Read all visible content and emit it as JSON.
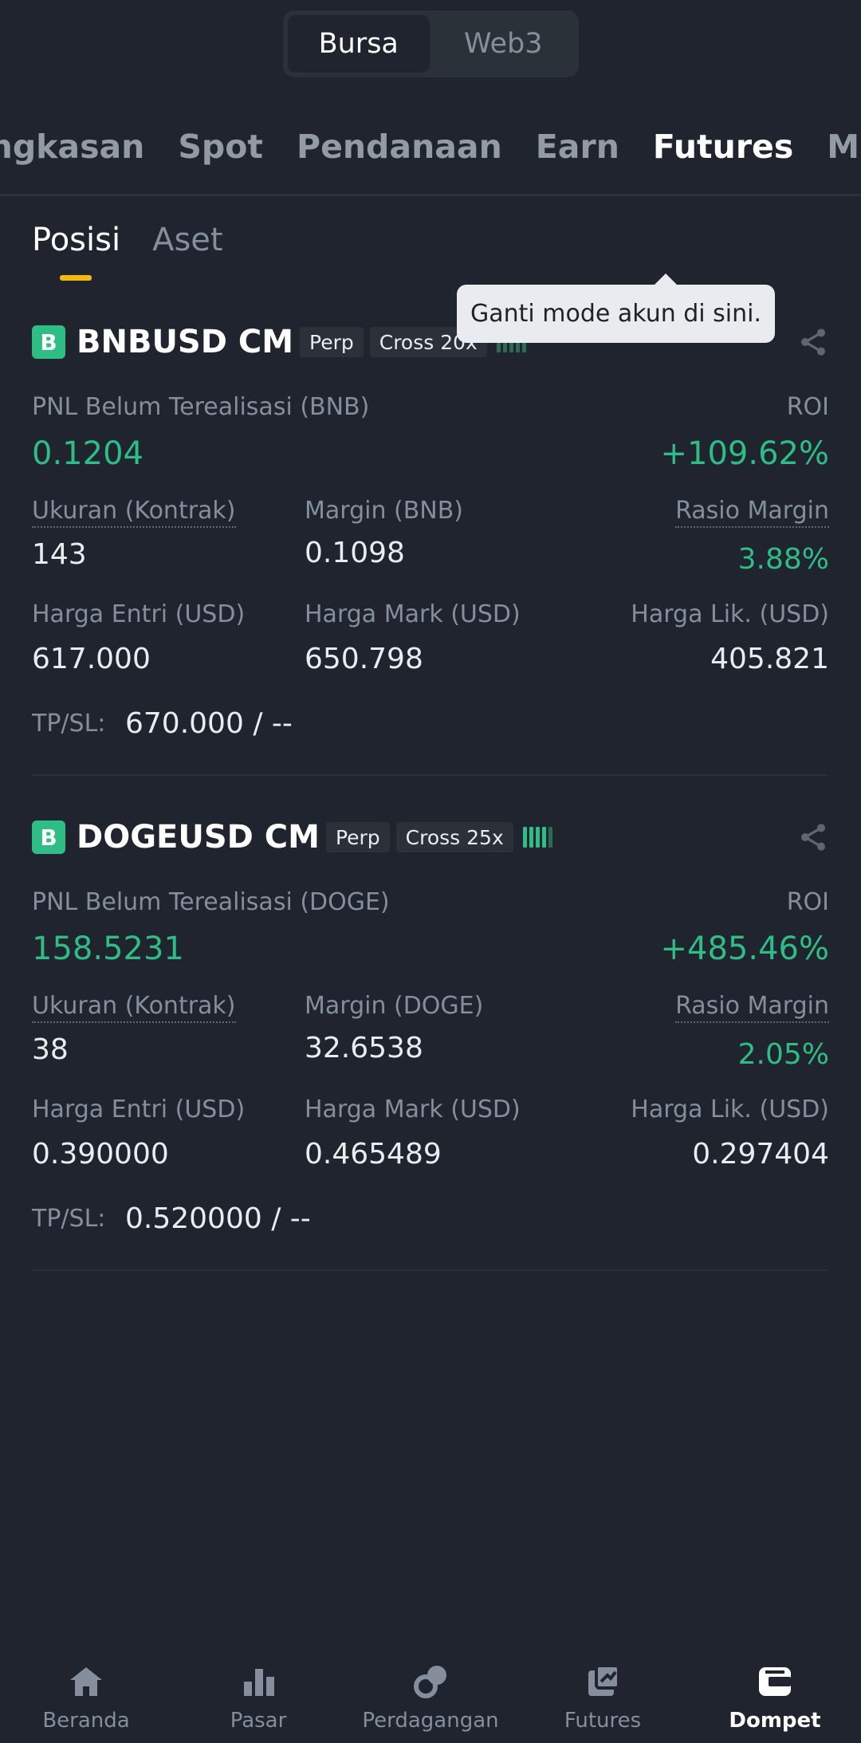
{
  "top_switch": {
    "items": [
      "Bursa",
      "Web3"
    ],
    "active": "Bursa"
  },
  "categories": [
    "Ringkasan",
    "Spot",
    "Pendanaan",
    "Earn",
    "Futures",
    "Margin"
  ],
  "subtabs": [
    "Posisi",
    "Aset"
  ],
  "tooltip": "Ganti mode akun di sini.",
  "positions": [
    {
      "badge": "B",
      "symbol": "BNBUSD CM",
      "type": "Perp",
      "leverage": "Cross 20x",
      "pnl_label": "PNL Belum Terealisasi (BNB)",
      "pnl": "0.1204",
      "roi_label": "ROI",
      "roi": "+109.62%",
      "size_label": "Ukuran (Kontrak)",
      "size": "143",
      "margin_label": "Margin (BNB)",
      "margin": "0.1098",
      "ratio_label": "Rasio Margin",
      "ratio": "3.88%",
      "entry_label": "Harga Entri (USD)",
      "entry": "617.000",
      "mark_label": "Harga Mark (USD)",
      "mark": "650.798",
      "liq_label": "Harga Lik. (USD)",
      "liq": "405.821",
      "tpsl_label": "TP/SL:",
      "tpsl": "670.000 / --"
    },
    {
      "badge": "B",
      "symbol": "DOGEUSD CM",
      "type": "Perp",
      "leverage": "Cross 25x",
      "pnl_label": "PNL Belum Terealisasi (DOGE)",
      "pnl": "158.5231",
      "roi_label": "ROI",
      "roi": "+485.46%",
      "size_label": "Ukuran (Kontrak)",
      "size": "38",
      "margin_label": "Margin (DOGE)",
      "margin": "32.6538",
      "ratio_label": "Rasio Margin",
      "ratio": "2.05%",
      "entry_label": "Harga Entri (USD)",
      "entry": "0.390000",
      "mark_label": "Harga Mark (USD)",
      "mark": "0.465489",
      "liq_label": "Harga Lik. (USD)",
      "liq": "0.297404",
      "tpsl_label": "TP/SL:",
      "tpsl": "0.520000 / --"
    }
  ],
  "bottom_nav": [
    {
      "label": "Beranda",
      "icon": "home-icon"
    },
    {
      "label": "Pasar",
      "icon": "bar-chart-icon"
    },
    {
      "label": "Perdagangan",
      "icon": "trade-icon"
    },
    {
      "label": "Futures",
      "icon": "futures-icon"
    },
    {
      "label": "Dompet",
      "icon": "wallet-icon",
      "active": true
    }
  ],
  "colors": {
    "accent": "#f0b90b",
    "positive": "#2ebd85",
    "background": "#1f242e"
  }
}
